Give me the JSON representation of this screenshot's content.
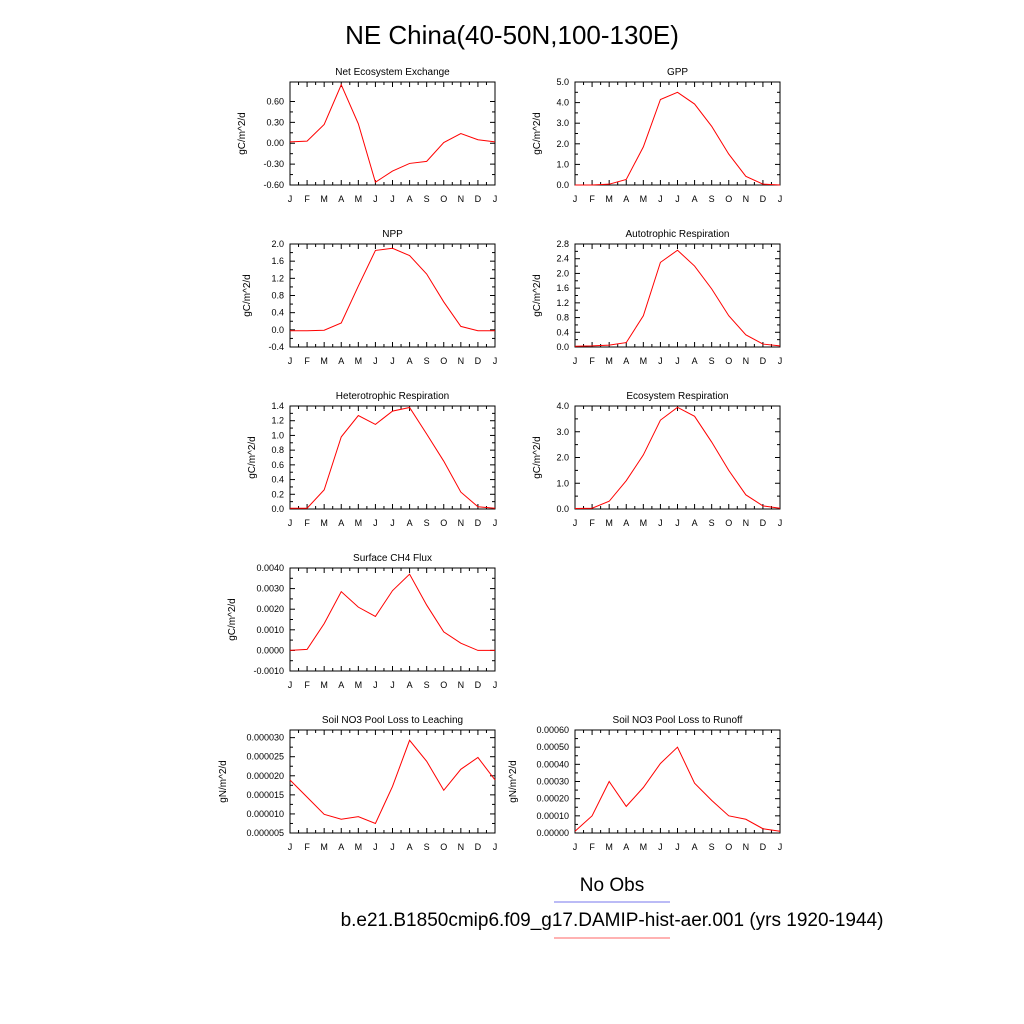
{
  "figure": {
    "title": "NE China(40-50N,100-130E)",
    "legend": [
      {
        "label": "No Obs",
        "color": "#7777ee"
      },
      {
        "label": "b.e21.B1850cmip6.f09_g17.DAMIP-hist-aer.001 (yrs 1920-1944)",
        "color": "#ff6666"
      }
    ]
  },
  "chart_data": [
    {
      "type": "line",
      "title": "Net Ecosystem Exchange",
      "ylabel": "gC/m^2/d",
      "x": [
        "J",
        "F",
        "M",
        "A",
        "M",
        "J",
        "J",
        "A",
        "S",
        "O",
        "N",
        "D",
        "J"
      ],
      "ylim": [
        -0.6,
        0.88
      ],
      "yticks": [
        "-0.60",
        "-0.30",
        "0.00",
        "0.30",
        "0.60"
      ],
      "series": [
        {
          "color": "#ff0000",
          "values": [
            0.02,
            0.03,
            0.27,
            0.84,
            0.28,
            -0.56,
            -0.4,
            -0.29,
            -0.26,
            0.01,
            0.14,
            0.05,
            0.02
          ]
        }
      ]
    },
    {
      "type": "line",
      "title": "GPP",
      "ylabel": "gC/m^2/d",
      "x": [
        "J",
        "F",
        "M",
        "A",
        "M",
        "J",
        "J",
        "A",
        "S",
        "O",
        "N",
        "D",
        "J"
      ],
      "ylim": [
        0,
        5
      ],
      "yticks": [
        "0.0",
        "1.0",
        "2.0",
        "3.0",
        "4.0",
        "5.0"
      ],
      "series": [
        {
          "color": "#ff0000",
          "values": [
            0.0,
            0.0,
            0.04,
            0.27,
            1.85,
            4.15,
            4.5,
            3.93,
            2.85,
            1.5,
            0.42,
            0.04,
            0.0
          ]
        }
      ]
    },
    {
      "type": "line",
      "title": "NPP",
      "ylabel": "gC/m^2/d",
      "x": [
        "J",
        "F",
        "M",
        "A",
        "M",
        "J",
        "J",
        "A",
        "S",
        "O",
        "N",
        "D",
        "J"
      ],
      "ylim": [
        -0.4,
        2.0
      ],
      "yticks": [
        "-0.4",
        "0.0",
        "0.4",
        "0.8",
        "1.2",
        "1.6",
        "2.0"
      ],
      "series": [
        {
          "color": "#ff0000",
          "values": [
            -0.02,
            -0.02,
            -0.01,
            0.16,
            1.02,
            1.85,
            1.9,
            1.73,
            1.3,
            0.65,
            0.08,
            -0.02,
            -0.02
          ]
        }
      ]
    },
    {
      "type": "line",
      "title": "Autotrophic Respiration",
      "ylabel": "gC/m^2/d",
      "x": [
        "J",
        "F",
        "M",
        "A",
        "M",
        "J",
        "J",
        "A",
        "S",
        "O",
        "N",
        "D",
        "J"
      ],
      "ylim": [
        0,
        2.8
      ],
      "yticks": [
        "0.0",
        "0.4",
        "0.8",
        "1.2",
        "1.6",
        "2.0",
        "2.4",
        "2.8"
      ],
      "series": [
        {
          "color": "#ff0000",
          "values": [
            0.02,
            0.03,
            0.05,
            0.12,
            0.85,
            2.3,
            2.63,
            2.2,
            1.58,
            0.85,
            0.33,
            0.08,
            0.03
          ]
        }
      ]
    },
    {
      "type": "line",
      "title": "Heterotrophic Respiration",
      "ylabel": "gC/m^2/d",
      "x": [
        "J",
        "F",
        "M",
        "A",
        "M",
        "J",
        "J",
        "A",
        "S",
        "O",
        "N",
        "D",
        "J"
      ],
      "ylim": [
        0,
        1.4
      ],
      "yticks": [
        "0.0",
        "0.2",
        "0.4",
        "0.6",
        "0.8",
        "1.0",
        "1.2",
        "1.4"
      ],
      "series": [
        {
          "color": "#ff0000",
          "values": [
            0.01,
            0.01,
            0.26,
            0.98,
            1.27,
            1.15,
            1.33,
            1.38,
            1.02,
            0.65,
            0.23,
            0.03,
            0.01
          ]
        }
      ]
    },
    {
      "type": "line",
      "title": "Ecosystem Respiration",
      "ylabel": "gC/m^2/d",
      "x": [
        "J",
        "F",
        "M",
        "A",
        "M",
        "J",
        "J",
        "A",
        "S",
        "O",
        "N",
        "D",
        "J"
      ],
      "ylim": [
        0,
        4.0
      ],
      "yticks": [
        "0.0",
        "1.0",
        "2.0",
        "3.0",
        "4.0"
      ],
      "series": [
        {
          "color": "#ff0000",
          "values": [
            0.02,
            0.03,
            0.3,
            1.1,
            2.1,
            3.45,
            3.95,
            3.6,
            2.6,
            1.5,
            0.55,
            0.12,
            0.03
          ]
        }
      ]
    },
    {
      "type": "line",
      "title": "Surface CH4 Flux",
      "ylabel": "gC/m^2/d",
      "x": [
        "J",
        "F",
        "M",
        "A",
        "M",
        "J",
        "J",
        "A",
        "S",
        "O",
        "N",
        "D",
        "J"
      ],
      "ylim": [
        -0.001,
        0.004
      ],
      "yticks": [
        "-0.0010",
        "0.0000",
        "0.0010",
        "0.0020",
        "0.0030",
        "0.0040"
      ],
      "series": [
        {
          "color": "#ff0000",
          "values": [
            0.0,
            5e-05,
            0.0013,
            0.00285,
            0.0021,
            0.00165,
            0.0029,
            0.0037,
            0.0022,
            0.0009,
            0.00035,
            0.0,
            0.0
          ]
        }
      ]
    },
    {
      "type": "line",
      "title": "Soil NO3 Pool Loss to Leaching",
      "ylabel": "gN/m^2/d",
      "x": [
        "J",
        "F",
        "M",
        "A",
        "M",
        "J",
        "J",
        "A",
        "S",
        "O",
        "N",
        "D",
        "J"
      ],
      "ylim": [
        5e-06,
        3.2e-05
      ],
      "yticks": [
        "0.000005",
        "0.000010",
        "0.000015",
        "0.000020",
        "0.000025",
        "0.000030"
      ],
      "series": [
        {
          "color": "#ff0000",
          "values": [
            1.89e-05,
            1.44e-05,
            9.9e-06,
            8.6e-06,
            9.3e-06,
            7.5e-06,
            1.72e-05,
            2.93e-05,
            2.38e-05,
            1.62e-05,
            2.17e-05,
            2.48e-05,
            1.89e-05
          ]
        }
      ]
    },
    {
      "type": "line",
      "title": "Soil NO3 Pool Loss to Runoff",
      "ylabel": "gN/m^2/d",
      "x": [
        "J",
        "F",
        "M",
        "A",
        "M",
        "J",
        "J",
        "A",
        "S",
        "O",
        "N",
        "D",
        "J"
      ],
      "ylim": [
        0,
        0.0006
      ],
      "yticks": [
        "0.00000",
        "0.00010",
        "0.00020",
        "0.00030",
        "0.00040",
        "0.00050",
        "0.00060"
      ],
      "series": [
        {
          "color": "#ff0000",
          "values": [
            1e-05,
            0.0001,
            0.0003,
            0.000155,
            0.000265,
            0.000405,
            0.0005,
            0.00029,
            0.00019,
            0.0001,
            8e-05,
            2.5e-05,
            1e-05
          ]
        }
      ]
    }
  ]
}
